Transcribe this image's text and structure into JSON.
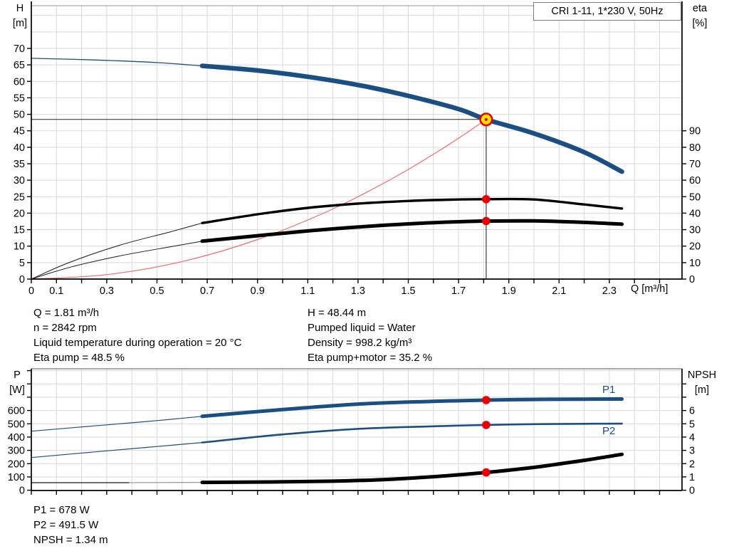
{
  "title_box": {
    "text": "CRI 1-11, 1*230 V, 50Hz"
  },
  "info_top": {
    "left": [
      "Q = 1.81 m³/h",
      "n = 2842 rpm",
      "Liquid temperature during operation = 20 °C",
      "Eta pump = 48.5 %"
    ],
    "right": [
      "H = 48.44 m",
      "Pumped liquid = Water",
      "Density = 998.2 kg/m³",
      "Eta pump+motor = 35.2 %"
    ]
  },
  "info_bottom": [
    "P1 = 678 W",
    "P2 = 491.5 W",
    "NPSH = 1.34 m"
  ],
  "colors": {
    "curve_blue": "#1a4f85",
    "curve_black": "#000000",
    "curve_gray": "#9b9b9b",
    "system_red": "#f96a6a",
    "marker_red": "#ee0000",
    "marker_yellow": "#ffe600",
    "duty_line": "#4d4d4d",
    "grid": "#d9d9d9",
    "frame": "#ababab",
    "axis": "#000000"
  },
  "chart_data": [
    {
      "name": "hq-eta-chart",
      "type": "line",
      "title": "CRI 1-11, 1*230 V, 50Hz",
      "x_axis": {
        "title": "Q [m³/h]",
        "min": 0,
        "max": 2.59,
        "tick_step": 0.1,
        "tick_max": 2.5,
        "label_values": [
          0,
          0.1,
          0.3,
          0.5,
          0.7,
          0.9,
          1.1,
          1.3,
          1.5,
          1.7,
          1.9,
          2.1,
          2.3
        ]
      },
      "y_left": {
        "title_lines": [
          "H",
          "[m]"
        ],
        "min": 0,
        "max": 83,
        "tick_step": 5,
        "tick_max": 70,
        "label_max": 70,
        "grid_min": 5,
        "grid_max": 80
      },
      "y_right": {
        "title_lines": [
          "eta",
          "[%]"
        ],
        "min": 0,
        "max": 166,
        "tick_step": 10,
        "tick_max": 90,
        "label_max": 90
      },
      "duty_point": {
        "q": 1.81,
        "h": 48.44,
        "eta_pump": 48.5,
        "eta_pump_motor": 35.2
      },
      "series": [
        {
          "name": "duty-head-line",
          "color": "#222222",
          "width": 1,
          "axis": "left",
          "points": [
            [
              0,
              48.44
            ],
            [
              1.81,
              48.44
            ]
          ]
        },
        {
          "name": "duty-flow-line",
          "color": "#4d4d4d",
          "width": 1.3,
          "axis": "left",
          "points": [
            [
              1.81,
              48.44
            ],
            [
              1.81,
              0
            ]
          ]
        },
        {
          "name": "system-curve",
          "color": "#f96a6a",
          "width": 1.2,
          "axis": "left",
          "points": [
            [
              0,
              0
            ],
            [
              0.3,
              1.33
            ],
            [
              0.6,
              5.31
            ],
            [
              0.9,
              11.98
            ],
            [
              1.2,
              21.29
            ],
            [
              1.45,
              31.09
            ],
            [
              1.65,
              40.26
            ],
            [
              1.81,
              48.44
            ]
          ]
        },
        {
          "name": "eta-pump-curve-extended",
          "color": "#1a1a1a",
          "width": 1,
          "axis": "right",
          "points": [
            [
              0,
              0
            ],
            [
              0.15,
              10
            ],
            [
              0.35,
              20.5
            ],
            [
              0.55,
              28.5
            ],
            [
              0.68,
              34
            ]
          ]
        },
        {
          "name": "eta-pump-motor-curve-extended",
          "color": "#1a1a1a",
          "width": 1,
          "axis": "right",
          "points": [
            [
              0,
              0
            ],
            [
              0.15,
              7
            ],
            [
              0.35,
              14
            ],
            [
              0.55,
              19.5
            ],
            [
              0.68,
              23
            ]
          ]
        },
        {
          "name": "h-curve-extended",
          "color": "#1a4f85",
          "width": 1.3,
          "axis": "left",
          "points": [
            [
              0,
              67
            ],
            [
              0.25,
              66.5
            ],
            [
              0.5,
              65.7
            ],
            [
              0.68,
              64.7
            ]
          ]
        },
        {
          "name": "eta-pump-curve",
          "color": "#000000",
          "width": 3.4,
          "axis": "right",
          "points": [
            [
              0.68,
              34
            ],
            [
              0.9,
              39.3
            ],
            [
              1.1,
              43.2
            ],
            [
              1.3,
              45.8
            ],
            [
              1.5,
              47.4
            ],
            [
              1.7,
              48.3
            ],
            [
              1.81,
              48.5
            ],
            [
              2.0,
              48.3
            ],
            [
              2.2,
              45.3
            ],
            [
              2.35,
              42.8
            ]
          ]
        },
        {
          "name": "eta-pump-motor-curve",
          "color": "#000000",
          "width": 5,
          "axis": "right",
          "points": [
            [
              0.68,
              23
            ],
            [
              0.9,
              26.3
            ],
            [
              1.1,
              29.2
            ],
            [
              1.3,
              31.6
            ],
            [
              1.5,
              33.5
            ],
            [
              1.7,
              34.8
            ],
            [
              1.81,
              35.2
            ],
            [
              2.0,
              35.3
            ],
            [
              2.2,
              34.4
            ],
            [
              2.35,
              33.3
            ]
          ]
        },
        {
          "name": "h-curve",
          "color": "#1a4f85",
          "width": 6.5,
          "axis": "left",
          "points": [
            [
              0.68,
              64.7
            ],
            [
              0.9,
              63.3
            ],
            [
              1.1,
              61.4
            ],
            [
              1.3,
              58.9
            ],
            [
              1.5,
              55.6
            ],
            [
              1.7,
              51.6
            ],
            [
              1.81,
              48.44
            ],
            [
              2.0,
              44.2
            ],
            [
              2.2,
              38.5
            ],
            [
              2.35,
              32.6
            ]
          ]
        }
      ],
      "markers": [
        {
          "type": "dot",
          "axis": "right",
          "q": 1.81,
          "v": 48.5,
          "r": 5.8
        },
        {
          "type": "dot",
          "axis": "right",
          "q": 1.81,
          "v": 35.2,
          "r": 5.8
        },
        {
          "type": "duty",
          "axis": "left",
          "q": 1.81,
          "v": 48.44,
          "r": 8.3
        }
      ]
    },
    {
      "name": "power-npsh-chart",
      "type": "line",
      "x_axis": {
        "title": "",
        "min": 0,
        "max": 2.59,
        "tick_step": 0.1,
        "tick_max": 2.5,
        "label_values": []
      },
      "y_left": {
        "title_lines": [
          "P",
          "[W]"
        ],
        "min": 0,
        "max": 915,
        "tick_step": 100,
        "tick_max": 900,
        "label_max": 600,
        "grid_min": 100,
        "grid_max": 900
      },
      "y_right": {
        "title_lines": [
          "NPSH",
          "[m]"
        ],
        "min": 0,
        "max": 9.1,
        "tick_step": 1,
        "tick_max": 8,
        "label_max": 6
      },
      "duty_point": {
        "q": 1.81,
        "p1": 678,
        "p2": 491.5,
        "npsh": 1.34
      },
      "curve_labels": [
        {
          "text": "P1"
        },
        {
          "text": "P2"
        }
      ],
      "series": [
        {
          "name": "p1-curve-extended",
          "color": "#1a4f85",
          "width": 1.2,
          "axis": "left",
          "points": [
            [
              0,
              444
            ],
            [
              0.3,
              492
            ],
            [
              0.5,
              524
            ],
            [
              0.68,
              556
            ]
          ]
        },
        {
          "name": "p2-curve-extended",
          "color": "#1a4f85",
          "width": 1.2,
          "axis": "left",
          "points": [
            [
              0,
              246
            ],
            [
              0.3,
              296
            ],
            [
              0.5,
              329
            ],
            [
              0.68,
              359
            ]
          ]
        },
        {
          "name": "npsh-curve-extended",
          "color": "#1a1a1a",
          "width": 1.3,
          "axis": "right",
          "points": [
            [
              0,
              0.57
            ],
            [
              0.39,
              0.57
            ]
          ]
        },
        {
          "name": "npsh-curve-extended-gray",
          "color": "#9b9b9b",
          "width": 1.3,
          "axis": "right",
          "points": [
            [
              0.39,
              0.57
            ],
            [
              0.68,
              0.59
            ]
          ]
        },
        {
          "name": "p1-curve",
          "color": "#1a4f85",
          "width": 5,
          "axis": "left",
          "points": [
            [
              0.68,
              556
            ],
            [
              1.0,
              607
            ],
            [
              1.3,
              648
            ],
            [
              1.6,
              669
            ],
            [
              1.81,
              678
            ],
            [
              2.0,
              683
            ],
            [
              2.2,
              685
            ],
            [
              2.35,
              686
            ]
          ]
        },
        {
          "name": "p2-curve",
          "color": "#1a4f85",
          "width": 2.6,
          "axis": "left",
          "points": [
            [
              0.68,
              359
            ],
            [
              1.0,
              420
            ],
            [
              1.3,
              462
            ],
            [
              1.6,
              481
            ],
            [
              1.81,
              491.5
            ],
            [
              2.0,
              497
            ],
            [
              2.2,
              500
            ],
            [
              2.35,
              501
            ]
          ]
        },
        {
          "name": "npsh-curve",
          "color": "#000000",
          "width": 5,
          "axis": "right",
          "points": [
            [
              0.68,
              0.59
            ],
            [
              0.95,
              0.62
            ],
            [
              1.2,
              0.68
            ],
            [
              1.4,
              0.8
            ],
            [
              1.6,
              1.02
            ],
            [
              1.81,
              1.34
            ],
            [
              2.0,
              1.72
            ],
            [
              2.2,
              2.25
            ],
            [
              2.35,
              2.7
            ]
          ]
        }
      ],
      "markers": [
        {
          "type": "dot",
          "axis": "left",
          "q": 1.81,
          "v": 678,
          "r": 5.8
        },
        {
          "type": "dot",
          "axis": "left",
          "q": 1.81,
          "v": 491.5,
          "r": 5.8
        },
        {
          "type": "dot",
          "axis": "right",
          "q": 1.81,
          "v": 1.34,
          "r": 5.8
        }
      ]
    }
  ]
}
